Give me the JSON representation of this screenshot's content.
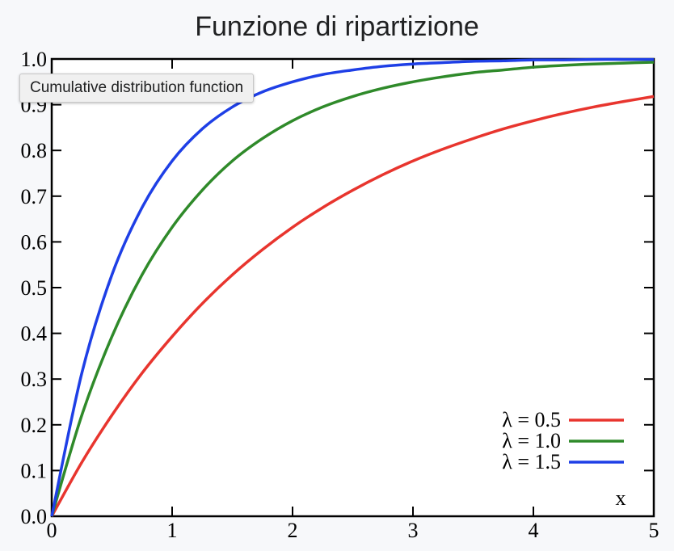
{
  "page": {
    "title": "Funzione di ripartizione",
    "tooltip": "Cumulative distribution function"
  },
  "chart_data": {
    "type": "line",
    "title": "",
    "xlabel": "x",
    "ylabel": "",
    "xlim": [
      0,
      5
    ],
    "ylim": [
      0,
      1
    ],
    "x_ticks": [
      "0",
      "1",
      "2",
      "3",
      "4",
      "5"
    ],
    "y_ticks": [
      "0.0",
      "0.1",
      "0.2",
      "0.3",
      "0.4",
      "0.5",
      "0.6",
      "0.7",
      "0.8",
      "0.9",
      "1.0"
    ],
    "grid": false,
    "legend_position": "bottom-right",
    "x": [
      0,
      0.25,
      0.5,
      0.75,
      1,
      1.25,
      1.5,
      1.75,
      2,
      2.25,
      2.5,
      2.75,
      3,
      3.25,
      3.5,
      3.75,
      4,
      4.25,
      4.5,
      4.75,
      5
    ],
    "series": [
      {
        "name": "λ = 0.5",
        "color": "#e8352e",
        "values": [
          0,
          0.118,
          0.221,
          0.313,
          0.393,
          0.465,
          0.528,
          0.583,
          0.632,
          0.675,
          0.713,
          0.747,
          0.777,
          0.803,
          0.826,
          0.847,
          0.865,
          0.881,
          0.895,
          0.907,
          0.918
        ]
      },
      {
        "name": "λ = 1.0",
        "color": "#2f8a2a",
        "values": [
          0,
          0.221,
          0.393,
          0.528,
          0.632,
          0.713,
          0.777,
          0.826,
          0.865,
          0.895,
          0.918,
          0.936,
          0.95,
          0.961,
          0.97,
          0.976,
          0.982,
          0.986,
          0.989,
          0.991,
          0.993
        ]
      },
      {
        "name": "λ = 1.5",
        "color": "#1e3fe6",
        "values": [
          0,
          0.313,
          0.528,
          0.675,
          0.777,
          0.847,
          0.895,
          0.928,
          0.95,
          0.966,
          0.976,
          0.984,
          0.989,
          0.992,
          0.995,
          0.996,
          0.998,
          0.998,
          0.999,
          0.999,
          0.999
        ]
      }
    ]
  }
}
